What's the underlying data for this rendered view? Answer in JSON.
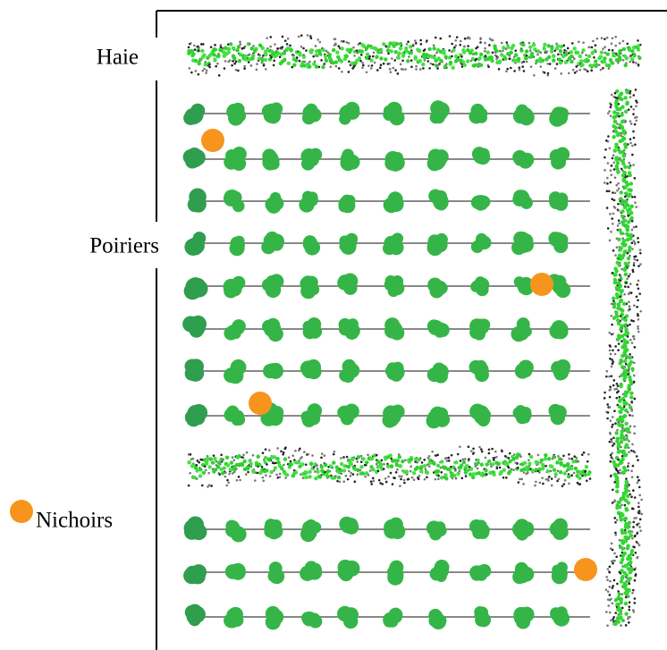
{
  "labels": {
    "hedge": "Haie",
    "trees": "Poiriers",
    "nest_boxes": "Nichoirs"
  }
}
